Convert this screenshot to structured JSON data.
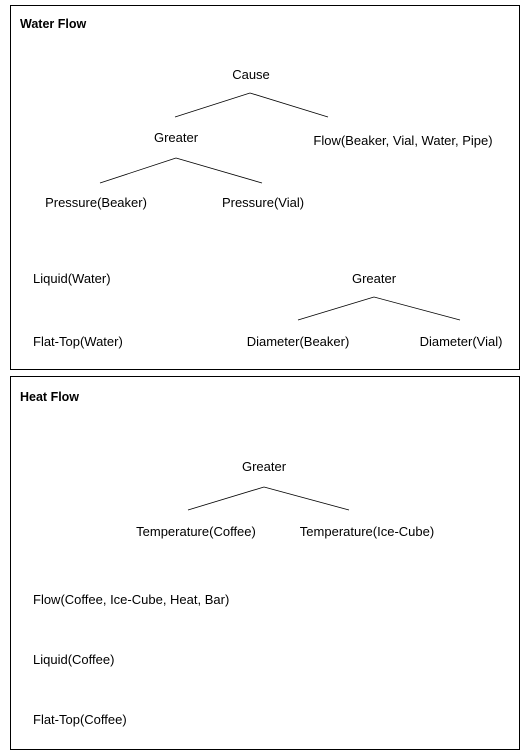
{
  "panels": [
    {
      "title": "Water Flow",
      "nodes": [
        "Cause",
        "Greater",
        "Flow(Beaker, Vial, Water, Pipe)",
        "Pressure(Beaker)",
        "Pressure(Vial)",
        "Liquid(Water)",
        "Greater",
        "Flat-Top(Water)",
        "Diameter(Beaker)",
        "Diameter(Vial)"
      ]
    },
    {
      "title": "Heat Flow",
      "nodes": [
        "Greater",
        "Temperature(Coffee)",
        "Temperature(Ice-Cube)",
        "Flow(Coffee, Ice-Cube, Heat, Bar)",
        "Liquid(Coffee)",
        "Flat-Top(Coffee)"
      ]
    }
  ]
}
